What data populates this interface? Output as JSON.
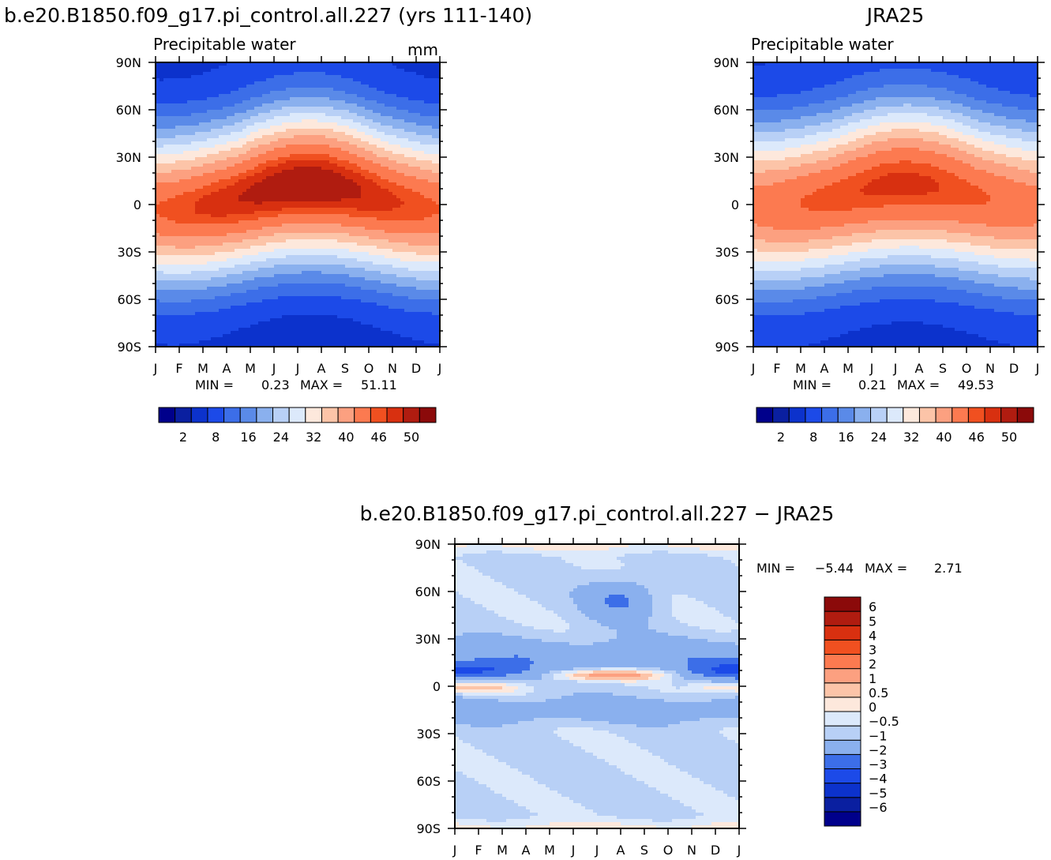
{
  "chart_data": [
    {
      "type": "heatmap",
      "title": "b.e20.B1850.f09_g17.pi_control.all.227 (yrs 111-140)",
      "subtitle": "Precipitable water",
      "units": "mm",
      "x_tick_labels": [
        "J",
        "F",
        "M",
        "A",
        "M",
        "J",
        "J",
        "A",
        "S",
        "O",
        "N",
        "D",
        "J"
      ],
      "y_tick_labels": [
        "90N",
        "60N",
        "30N",
        "0",
        "30S",
        "60S",
        "90S"
      ],
      "xlim": [
        0,
        12
      ],
      "ylim": [
        -90,
        90
      ],
      "stats": {
        "min_label": "MIN =",
        "min": "0.23",
        "max_label": "MAX =",
        "max": "51.11"
      },
      "field": {
        "eq_peak": 44,
        "eq_amp": 5,
        "itcz_lat": 4,
        "itcz_amp": 7,
        "itcz_width": 36,
        "seasonal_shift_deg": 6
      },
      "colorbar": {
        "orientation": "horizontal",
        "tick_labels": [
          "2",
          "8",
          "16",
          "24",
          "32",
          "40",
          "46",
          "50"
        ],
        "levels": [
          0,
          2,
          4,
          8,
          12,
          16,
          20,
          24,
          28,
          32,
          36,
          40,
          44,
          46,
          48,
          50
        ],
        "colors": [
          "#00008b",
          "#0a1fa0",
          "#0c32cc",
          "#1c4ae8",
          "#3c6ee8",
          "#5a8ae8",
          "#8ab0ee",
          "#b8d0f6",
          "#dce9fb",
          "#fde8dc",
          "#fcc4a8",
          "#fca080",
          "#fc7a50",
          "#f05020",
          "#d83010",
          "#b01c10",
          "#8b0a0a"
        ]
      }
    },
    {
      "type": "heatmap",
      "title": "JRA25",
      "subtitle": "Precipitable water",
      "x_tick_labels": [
        "J",
        "F",
        "M",
        "A",
        "M",
        "J",
        "J",
        "A",
        "S",
        "O",
        "N",
        "D",
        "J"
      ],
      "y_tick_labels": [
        "90N",
        "60N",
        "30N",
        "0",
        "30S",
        "60S",
        "90S"
      ],
      "xlim": [
        0,
        12
      ],
      "ylim": [
        -90,
        90
      ],
      "stats": {
        "min_label": "MIN =",
        "min": "0.21",
        "max_label": "MAX =",
        "max": "49.53"
      },
      "field": {
        "eq_peak": 42,
        "eq_amp": 4,
        "itcz_lat": 5,
        "itcz_amp": 6,
        "itcz_width": 38,
        "seasonal_shift_deg": 5
      },
      "colorbar": {
        "orientation": "horizontal",
        "tick_labels": [
          "2",
          "8",
          "16",
          "24",
          "32",
          "40",
          "46",
          "50"
        ],
        "levels": [
          0,
          2,
          4,
          8,
          12,
          16,
          20,
          24,
          28,
          32,
          36,
          40,
          44,
          46,
          48,
          50
        ],
        "colors": [
          "#00008b",
          "#0a1fa0",
          "#0c32cc",
          "#1c4ae8",
          "#3c6ee8",
          "#5a8ae8",
          "#8ab0ee",
          "#b8d0f6",
          "#dce9fb",
          "#fde8dc",
          "#fcc4a8",
          "#fca080",
          "#fc7a50",
          "#f05020",
          "#d83010",
          "#b01c10",
          "#8b0a0a"
        ]
      }
    },
    {
      "type": "heatmap",
      "title": "b.e20.B1850.f09_g17.pi_control.all.227 − JRA25",
      "x_tick_labels": [
        "J",
        "F",
        "M",
        "A",
        "M",
        "J",
        "J",
        "A",
        "S",
        "O",
        "N",
        "D",
        "J"
      ],
      "y_tick_labels": [
        "90N",
        "60N",
        "30N",
        "0",
        "30S",
        "60S",
        "90S"
      ],
      "xlim": [
        0,
        12
      ],
      "ylim": [
        -90,
        90
      ],
      "stats": {
        "min_label": "MIN =",
        "min": "−5.44",
        "max_label": "MAX =",
        "max": "2.71"
      },
      "colorbar": {
        "orientation": "vertical",
        "tick_labels": [
          "6",
          "5",
          "4",
          "3",
          "2",
          "1",
          "0.5",
          "0",
          "−0.5",
          "−1",
          "−2",
          "−3",
          "−4",
          "−5",
          "−6"
        ],
        "levels": [
          -6,
          -5,
          -4,
          -3,
          -2,
          -1,
          -0.5,
          0,
          0.5,
          1,
          2,
          3,
          4,
          5,
          6
        ],
        "colors": [
          "#00008b",
          "#0a1fa0",
          "#0c32cc",
          "#1c4ae8",
          "#3c6ee8",
          "#8ab0ee",
          "#b8d0f6",
          "#dce9fb",
          "#fde8dc",
          "#fcc4a8",
          "#fca080",
          "#fc7a50",
          "#f05020",
          "#d83010",
          "#b01c10",
          "#8b0a0a"
        ]
      }
    }
  ]
}
